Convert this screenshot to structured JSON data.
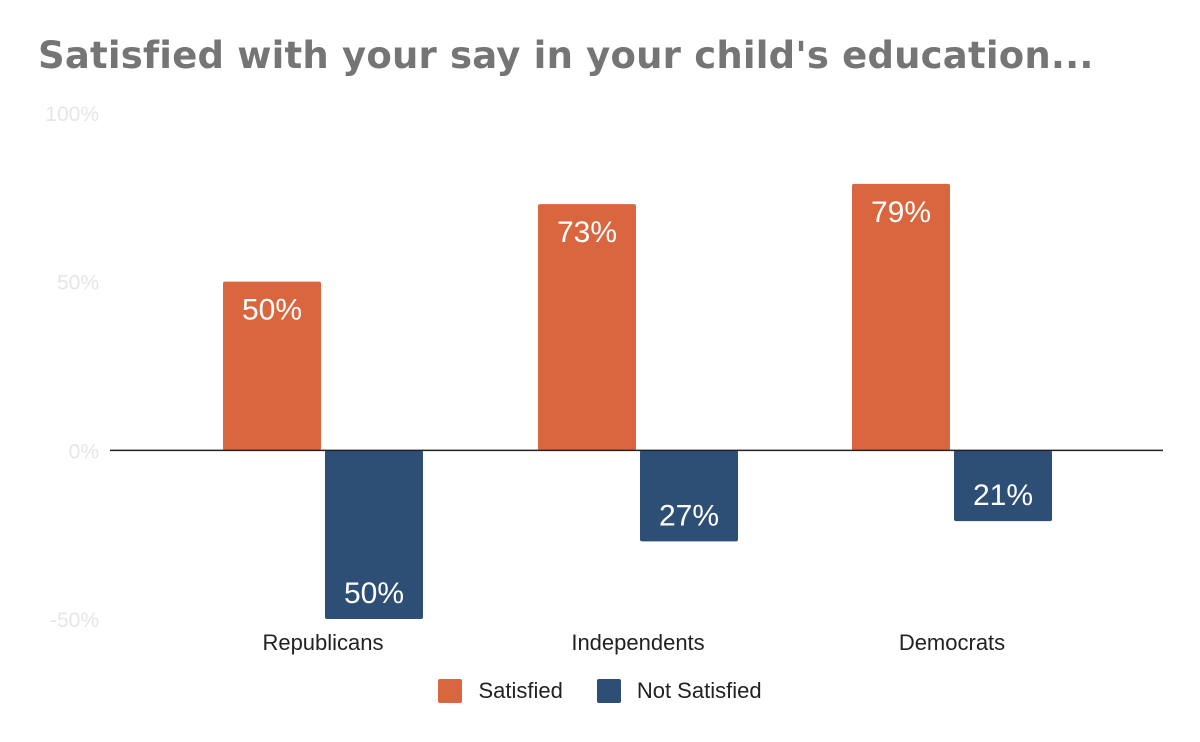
{
  "chart_data": {
    "type": "bar",
    "title": "Satisfied with your say in your child's education...",
    "categories": [
      "Republicans",
      "Independents",
      "Democrats"
    ],
    "series": [
      {
        "name": "Satisfied",
        "values": [
          50,
          73,
          79
        ],
        "labels": [
          "50%",
          "73%",
          "79%"
        ],
        "color": "#d9663e",
        "direction": "up"
      },
      {
        "name": "Not Satisfied",
        "values": [
          50,
          27,
          21
        ],
        "labels": [
          "50%",
          "27%",
          "21%"
        ],
        "color": "#2d4e75",
        "direction": "down"
      }
    ],
    "y_ticks": [
      100,
      50,
      0,
      -50
    ],
    "y_tick_labels": [
      "100%",
      "50%",
      "0%",
      "-50%"
    ],
    "ylim": [
      -50,
      100
    ],
    "xlabel": "",
    "ylabel": "",
    "legend_position": "bottom",
    "grid": false
  },
  "colors": {
    "title": "#757575",
    "tick_label": "#e6e6e6",
    "category_label": "#222222",
    "baseline": "#222222",
    "data_label": "#ffffff"
  }
}
